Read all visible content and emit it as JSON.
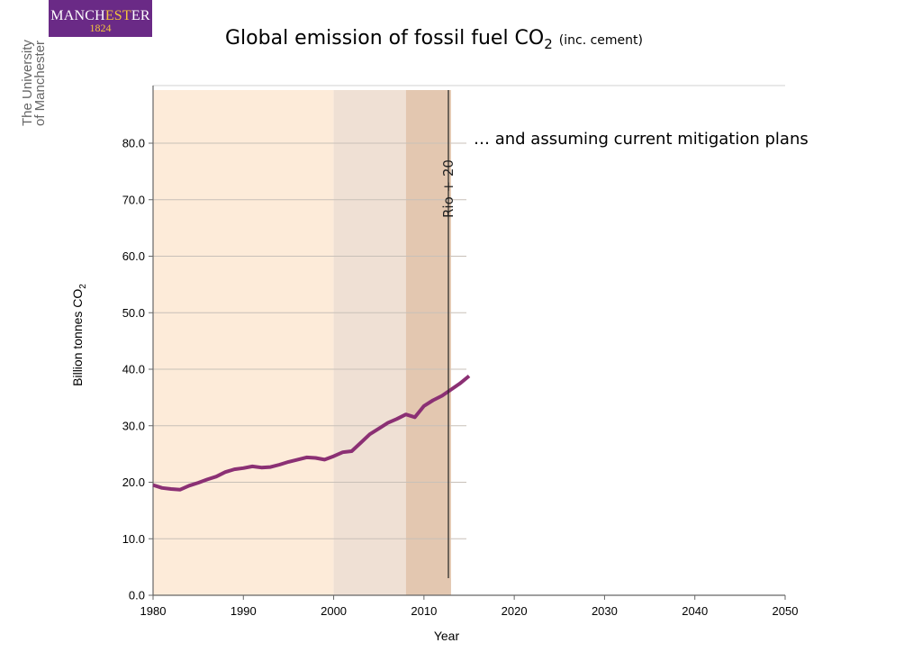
{
  "logo": {
    "wordmark_a": "MANCH",
    "wordmark_b": "EST",
    "wordmark_c": "ER",
    "year": "1824",
    "side_line1": "The University",
    "side_line2": "of Manchester"
  },
  "title": {
    "main": "Global emission of fossil fuel CO",
    "sub": "2",
    "note": "(inc. cement)"
  },
  "annotation": "… and assuming current mitigation plans",
  "rio_label": "Rio + 20",
  "chart_data": {
    "type": "line",
    "title": "Global emission of fossil fuel CO2 (inc. cement)",
    "xlabel": "Year",
    "ylabel": "Billion tonnes CO",
    "ylabel_sub": "2",
    "xlim": [
      1980,
      2050
    ],
    "ylim": [
      0,
      80
    ],
    "xticks": [
      1980,
      1990,
      2000,
      2010,
      2020,
      2030,
      2040,
      2050
    ],
    "xtick_labels": [
      "1980",
      "1990",
      "2000",
      "2010",
      "2020",
      "2030",
      "2040",
      "2050"
    ],
    "yticks": [
      0,
      10,
      20,
      30,
      40,
      50,
      60,
      70,
      80
    ],
    "ytick_labels": [
      "0.0",
      "10.0",
      "20.0",
      "30.0",
      "40.0",
      "50.0",
      "60.0",
      "70.0",
      "80.0"
    ],
    "grid": "horizontal",
    "bands": [
      {
        "from": 1980,
        "to": 2000,
        "color": "#fdebd9"
      },
      {
        "from": 2000,
        "to": 2008,
        "color": "#efe0d4"
      },
      {
        "from": 2008,
        "to": 2013,
        "color": "#e3c7b0"
      }
    ],
    "markers": [
      {
        "x": 2013,
        "label": "Rio + 20"
      }
    ],
    "series": [
      {
        "color": "#8b3074",
        "x": [
          1980,
          1981,
          1982,
          1983,
          1984,
          1985,
          1986,
          1987,
          1988,
          1989,
          1990,
          1991,
          1992,
          1993,
          1994,
          1995,
          1996,
          1997,
          1998,
          1999,
          2000,
          2001,
          2002,
          2003,
          2004,
          2005,
          2006,
          2007,
          2008,
          2009,
          2010,
          2011,
          2012,
          2013,
          2014,
          2015
        ],
        "y": [
          19.5,
          19.0,
          18.8,
          18.7,
          19.4,
          19.9,
          20.5,
          21.0,
          21.8,
          22.3,
          22.5,
          22.8,
          22.6,
          22.7,
          23.1,
          23.6,
          24.0,
          24.4,
          24.3,
          24.0,
          24.6,
          25.3,
          25.5,
          27.0,
          28.5,
          29.5,
          30.5,
          31.2,
          32.0,
          31.5,
          33.5,
          34.5,
          35.3,
          36.4,
          37.5,
          38.8
        ]
      }
    ]
  }
}
